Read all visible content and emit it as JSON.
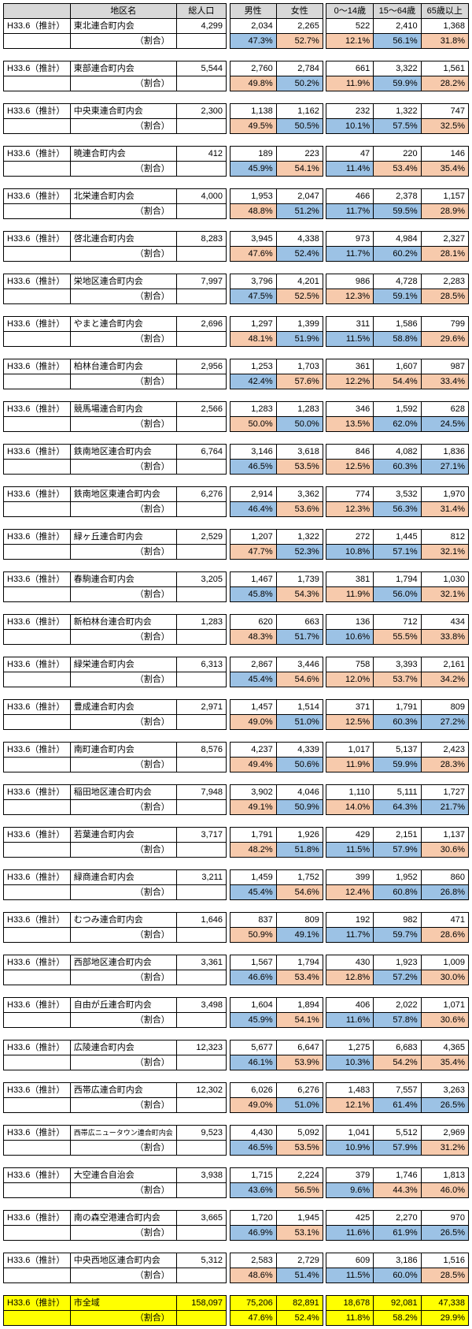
{
  "colors": {
    "blue": "#9cc2e5",
    "orange": "#f7caac",
    "yellow": "#ffff00",
    "header": "#d8d8d8"
  },
  "headers": {
    "c1": "",
    "c2": "地区名",
    "c3": "総人口",
    "c4": "男性",
    "c5": "女性",
    "c6": "0～14歳",
    "c7": "15～64歳",
    "c8": "65歳以上"
  },
  "label": "H33.6（推計）",
  "ratio": "（割合）",
  "rows": [
    {
      "n": "東北連合町内会",
      "p": "4,299",
      "m": "2,034",
      "f": "2,265",
      "a": "522",
      "b": "2,410",
      "c": "1,368",
      "mp": "47.3%",
      "fp": "52.7%",
      "ap": "12.1%",
      "bp": "56.1%",
      "cp": "31.8%",
      "mpc": "b",
      "fpc": "o",
      "apc": "o",
      "bpc": "b",
      "cpc": "o"
    },
    {
      "n": "東部連合町内会",
      "p": "5,544",
      "m": "2,760",
      "f": "2,784",
      "a": "661",
      "b": "3,322",
      "c": "1,561",
      "mp": "49.8%",
      "fp": "50.2%",
      "ap": "11.9%",
      "bp": "59.9%",
      "cp": "28.2%",
      "mpc": "o",
      "fpc": "b",
      "apc": "o",
      "bpc": "b",
      "cpc": "o"
    },
    {
      "n": "中央東連合町内会",
      "p": "2,300",
      "m": "1,138",
      "f": "1,162",
      "a": "232",
      "b": "1,322",
      "c": "747",
      "mp": "49.5%",
      "fp": "50.5%",
      "ap": "10.1%",
      "bp": "57.5%",
      "cp": "32.5%",
      "mpc": "o",
      "fpc": "b",
      "apc": "b",
      "bpc": "b",
      "cpc": "o"
    },
    {
      "n": "暁連合町内会",
      "p": "412",
      "m": "189",
      "f": "223",
      "a": "47",
      "b": "220",
      "c": "146",
      "mp": "45.9%",
      "fp": "54.1%",
      "ap": "11.4%",
      "bp": "53.4%",
      "cp": "35.4%",
      "mpc": "b",
      "fpc": "o",
      "apc": "b",
      "bpc": "o",
      "cpc": "o"
    },
    {
      "n": "北栄連合町内会",
      "p": "4,000",
      "m": "1,953",
      "f": "2,047",
      "a": "466",
      "b": "2,378",
      "c": "1,157",
      "mp": "48.8%",
      "fp": "51.2%",
      "ap": "11.7%",
      "bp": "59.5%",
      "cp": "28.9%",
      "mpc": "o",
      "fpc": "b",
      "apc": "b",
      "bpc": "b",
      "cpc": "o"
    },
    {
      "n": "啓北連合町内会",
      "p": "8,283",
      "m": "3,945",
      "f": "4,338",
      "a": "973",
      "b": "4,984",
      "c": "2,327",
      "mp": "47.6%",
      "fp": "52.4%",
      "ap": "11.7%",
      "bp": "60.2%",
      "cp": "28.1%",
      "mpc": "o",
      "fpc": "b",
      "apc": "b",
      "bpc": "b",
      "cpc": "o"
    },
    {
      "n": "栄地区連合町内会",
      "p": "7,997",
      "m": "3,796",
      "f": "4,201",
      "a": "986",
      "b": "4,728",
      "c": "2,283",
      "mp": "47.5%",
      "fp": "52.5%",
      "ap": "12.3%",
      "bp": "59.1%",
      "cp": "28.5%",
      "mpc": "b",
      "fpc": "o",
      "apc": "o",
      "bpc": "b",
      "cpc": "o"
    },
    {
      "n": "やまと連合町内会",
      "p": "2,696",
      "m": "1,297",
      "f": "1,399",
      "a": "311",
      "b": "1,586",
      "c": "799",
      "mp": "48.1%",
      "fp": "51.9%",
      "ap": "11.5%",
      "bp": "58.8%",
      "cp": "29.6%",
      "mpc": "o",
      "fpc": "b",
      "apc": "b",
      "bpc": "b",
      "cpc": "o"
    },
    {
      "n": "柏林台連合町内会",
      "p": "2,956",
      "m": "1,253",
      "f": "1,703",
      "a": "361",
      "b": "1,607",
      "c": "987",
      "mp": "42.4%",
      "fp": "57.6%",
      "ap": "12.2%",
      "bp": "54.4%",
      "cp": "33.4%",
      "mpc": "b",
      "fpc": "o",
      "apc": "o",
      "bpc": "o",
      "cpc": "o"
    },
    {
      "n": "競馬場連合町内会",
      "p": "2,566",
      "m": "1,283",
      "f": "1,283",
      "a": "346",
      "b": "1,592",
      "c": "628",
      "mp": "50.0%",
      "fp": "50.0%",
      "ap": "13.5%",
      "bp": "62.0%",
      "cp": "24.5%",
      "mpc": "o",
      "fpc": "b",
      "apc": "o",
      "bpc": "b",
      "cpc": "b"
    },
    {
      "n": "鉄南地区連合町内会",
      "p": "6,764",
      "m": "3,146",
      "f": "3,618",
      "a": "846",
      "b": "4,082",
      "c": "1,836",
      "mp": "46.5%",
      "fp": "53.5%",
      "ap": "12.5%",
      "bp": "60.3%",
      "cp": "27.1%",
      "mpc": "b",
      "fpc": "o",
      "apc": "o",
      "bpc": "b",
      "cpc": "b"
    },
    {
      "n": "鉄南地区東連合町内会",
      "p": "6,276",
      "m": "2,914",
      "f": "3,362",
      "a": "774",
      "b": "3,532",
      "c": "1,970",
      "mp": "46.4%",
      "fp": "53.6%",
      "ap": "12.3%",
      "bp": "56.3%",
      "cp": "31.4%",
      "mpc": "b",
      "fpc": "o",
      "apc": "o",
      "bpc": "b",
      "cpc": "o"
    },
    {
      "n": "緑ヶ丘連合町内会",
      "p": "2,529",
      "m": "1,207",
      "f": "1,322",
      "a": "272",
      "b": "1,445",
      "c": "812",
      "mp": "47.7%",
      "fp": "52.3%",
      "ap": "10.8%",
      "bp": "57.1%",
      "cp": "32.1%",
      "mpc": "o",
      "fpc": "b",
      "apc": "b",
      "bpc": "b",
      "cpc": "o"
    },
    {
      "n": "春駒連合町内会",
      "p": "3,205",
      "m": "1,467",
      "f": "1,739",
      "a": "381",
      "b": "1,794",
      "c": "1,030",
      "mp": "45.8%",
      "fp": "54.3%",
      "ap": "11.9%",
      "bp": "56.0%",
      "cp": "32.1%",
      "mpc": "b",
      "fpc": "o",
      "apc": "o",
      "bpc": "b",
      "cpc": "o"
    },
    {
      "n": "新柏林台連合町内会",
      "p": "1,283",
      "m": "620",
      "f": "663",
      "a": "136",
      "b": "712",
      "c": "434",
      "mp": "48.3%",
      "fp": "51.7%",
      "ap": "10.6%",
      "bp": "55.5%",
      "cp": "33.8%",
      "mpc": "o",
      "fpc": "b",
      "apc": "b",
      "bpc": "o",
      "cpc": "o"
    },
    {
      "n": "緑栄連合町内会",
      "p": "6,313",
      "m": "2,867",
      "f": "3,446",
      "a": "758",
      "b": "3,393",
      "c": "2,161",
      "mp": "45.4%",
      "fp": "54.6%",
      "ap": "12.0%",
      "bp": "53.7%",
      "cp": "34.2%",
      "mpc": "b",
      "fpc": "o",
      "apc": "o",
      "bpc": "o",
      "cpc": "o"
    },
    {
      "n": "豊成連合町内会",
      "p": "2,971",
      "m": "1,457",
      "f": "1,514",
      "a": "371",
      "b": "1,791",
      "c": "809",
      "mp": "49.0%",
      "fp": "51.0%",
      "ap": "12.5%",
      "bp": "60.3%",
      "cp": "27.2%",
      "mpc": "o",
      "fpc": "b",
      "apc": "o",
      "bpc": "b",
      "cpc": "b"
    },
    {
      "n": "南町連合町内会",
      "p": "8,576",
      "m": "4,237",
      "f": "4,339",
      "a": "1,017",
      "b": "5,137",
      "c": "2,423",
      "mp": "49.4%",
      "fp": "50.6%",
      "ap": "11.9%",
      "bp": "59.9%",
      "cp": "28.3%",
      "mpc": "o",
      "fpc": "b",
      "apc": "o",
      "bpc": "b",
      "cpc": "o"
    },
    {
      "n": "稲田地区連合町内会",
      "p": "7,948",
      "m": "3,902",
      "f": "4,046",
      "a": "1,110",
      "b": "5,111",
      "c": "1,727",
      "mp": "49.1%",
      "fp": "50.9%",
      "ap": "14.0%",
      "bp": "64.3%",
      "cp": "21.7%",
      "mpc": "o",
      "fpc": "b",
      "apc": "o",
      "bpc": "b",
      "cpc": "b"
    },
    {
      "n": "若葉連合町内会",
      "p": "3,717",
      "m": "1,791",
      "f": "1,926",
      "a": "429",
      "b": "2,151",
      "c": "1,137",
      "mp": "48.2%",
      "fp": "51.8%",
      "ap": "11.5%",
      "bp": "57.9%",
      "cp": "30.6%",
      "mpc": "o",
      "fpc": "b",
      "apc": "b",
      "bpc": "b",
      "cpc": "o"
    },
    {
      "n": "緑商連合町内会",
      "p": "3,211",
      "m": "1,459",
      "f": "1,752",
      "a": "399",
      "b": "1,952",
      "c": "860",
      "mp": "45.4%",
      "fp": "54.6%",
      "ap": "12.4%",
      "bp": "60.8%",
      "cp": "26.8%",
      "mpc": "b",
      "fpc": "o",
      "apc": "o",
      "bpc": "b",
      "cpc": "b"
    },
    {
      "n": "むつみ連合町内会",
      "p": "1,646",
      "m": "837",
      "f": "809",
      "a": "192",
      "b": "982",
      "c": "471",
      "mp": "50.9%",
      "fp": "49.1%",
      "ap": "11.7%",
      "bp": "59.7%",
      "cp": "28.6%",
      "mpc": "o",
      "fpc": "b",
      "apc": "b",
      "bpc": "b",
      "cpc": "o"
    },
    {
      "n": "西部地区連合町内会",
      "p": "3,361",
      "m": "1,567",
      "f": "1,794",
      "a": "430",
      "b": "1,923",
      "c": "1,009",
      "mp": "46.6%",
      "fp": "53.4%",
      "ap": "12.8%",
      "bp": "57.2%",
      "cp": "30.0%",
      "mpc": "b",
      "fpc": "o",
      "apc": "o",
      "bpc": "b",
      "cpc": "o"
    },
    {
      "n": "自由が丘連合町内会",
      "p": "3,498",
      "m": "1,604",
      "f": "1,894",
      "a": "406",
      "b": "2,022",
      "c": "1,071",
      "mp": "45.9%",
      "fp": "54.1%",
      "ap": "11.6%",
      "bp": "57.8%",
      "cp": "30.6%",
      "mpc": "b",
      "fpc": "o",
      "apc": "b",
      "bpc": "b",
      "cpc": "o"
    },
    {
      "n": "広陵連合町内会",
      "p": "12,323",
      "m": "5,677",
      "f": "6,647",
      "a": "1,275",
      "b": "6,683",
      "c": "4,365",
      "mp": "46.1%",
      "fp": "53.9%",
      "ap": "10.3%",
      "bp": "54.2%",
      "cp": "35.4%",
      "mpc": "b",
      "fpc": "o",
      "apc": "b",
      "bpc": "o",
      "cpc": "o"
    },
    {
      "n": "西帯広連合町内会",
      "p": "12,302",
      "m": "6,026",
      "f": "6,276",
      "a": "1,483",
      "b": "7,557",
      "c": "3,263",
      "mp": "49.0%",
      "fp": "51.0%",
      "ap": "12.1%",
      "bp": "61.4%",
      "cp": "26.5%",
      "mpc": "o",
      "fpc": "b",
      "apc": "o",
      "bpc": "b",
      "cpc": "b"
    },
    {
      "n": "西帯広ニュータウン連合町内会",
      "p": "9,523",
      "m": "4,430",
      "f": "5,092",
      "a": "1,041",
      "b": "5,512",
      "c": "2,969",
      "mp": "46.5%",
      "fp": "53.5%",
      "ap": "10.9%",
      "bp": "57.9%",
      "cp": "31.2%",
      "mpc": "b",
      "fpc": "o",
      "apc": "b",
      "bpc": "b",
      "cpc": "o",
      "small": true
    },
    {
      "n": "大空連合自治会",
      "p": "3,938",
      "m": "1,715",
      "f": "2,224",
      "a": "379",
      "b": "1,746",
      "c": "1,813",
      "mp": "43.6%",
      "fp": "56.5%",
      "ap": "9.6%",
      "bp": "44.3%",
      "cp": "46.0%",
      "mpc": "b",
      "fpc": "o",
      "apc": "b",
      "bpc": "o",
      "cpc": "o"
    },
    {
      "n": "南の森空港連合町内会",
      "p": "3,665",
      "m": "1,720",
      "f": "1,945",
      "a": "425",
      "b": "2,270",
      "c": "970",
      "mp": "46.9%",
      "fp": "53.1%",
      "ap": "11.6%",
      "bp": "61.9%",
      "cp": "26.5%",
      "mpc": "b",
      "fpc": "o",
      "apc": "b",
      "bpc": "b",
      "cpc": "b"
    },
    {
      "n": "中央西地区連合町内会",
      "p": "5,312",
      "m": "2,583",
      "f": "2,729",
      "a": "609",
      "b": "3,186",
      "c": "1,516",
      "mp": "48.6%",
      "fp": "51.4%",
      "ap": "11.5%",
      "bp": "60.0%",
      "cp": "28.5%",
      "mpc": "o",
      "fpc": "b",
      "apc": "b",
      "bpc": "b",
      "cpc": "o"
    }
  ],
  "total": {
    "n": "市全域",
    "p": "158,097",
    "m": "75,206",
    "f": "82,891",
    "a": "18,678",
    "b": "92,081",
    "c": "47,338",
    "mp": "47.6%",
    "fp": "52.4%",
    "ap": "11.8%",
    "bp": "58.2%",
    "cp": "29.9%"
  }
}
